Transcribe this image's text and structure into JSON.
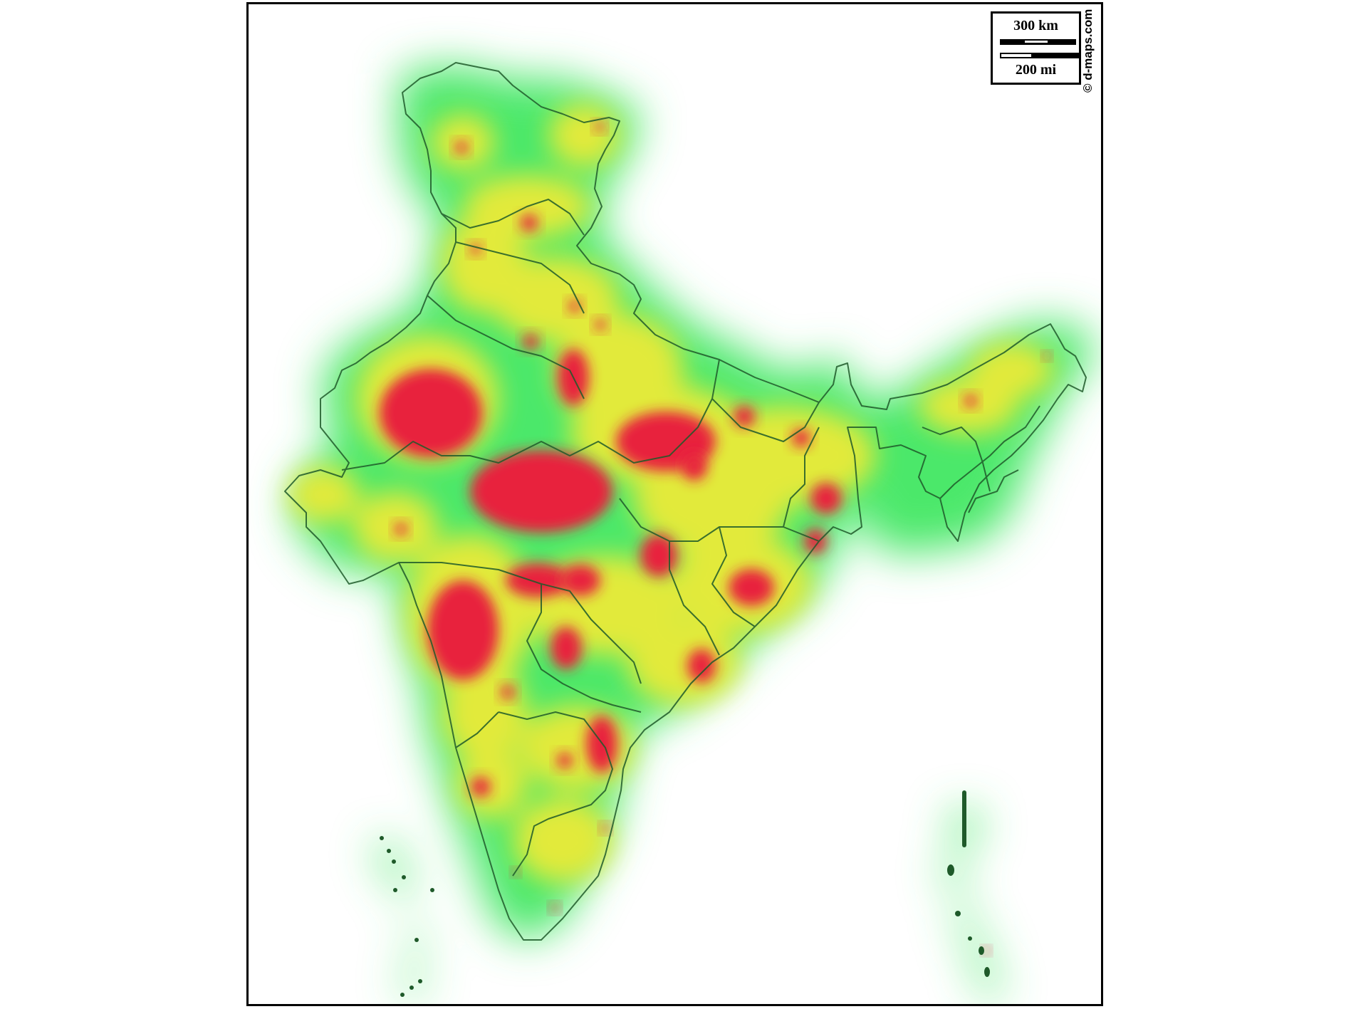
{
  "map": {
    "source_credit": "© d-maps.com",
    "scale_bar": {
      "km_label": "300 km",
      "mi_label": "200 mi"
    },
    "heat_colors": {
      "low": "#4be86a",
      "mid": "#e2ea3a",
      "high": "#e8233c"
    },
    "border_color": "#1f5a2a"
  }
}
